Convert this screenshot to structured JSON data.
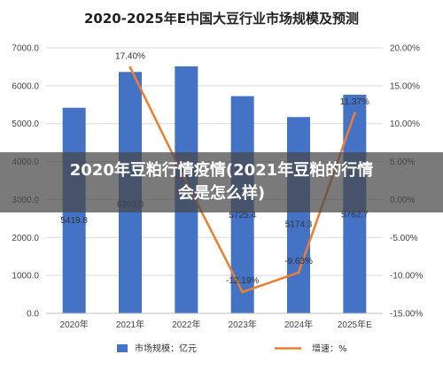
{
  "chart_data": {
    "type": "bar",
    "title": "2020-2025年E中国大豆行业市场规模及预测",
    "categories": [
      "2020年",
      "2021年",
      "2022年",
      "2023年",
      "2024年",
      "2025年E"
    ],
    "series": [
      {
        "name": "市场规模：亿元",
        "type": "bar",
        "axis": "left",
        "color": "#4472c4",
        "values": [
          5419.8,
          6363.0,
          6510,
          5725.4,
          5174.3,
          5762.7
        ]
      },
      {
        "name": "增速：%",
        "type": "line",
        "axis": "right",
        "color": "#ed7d31",
        "values": [
          null,
          17.4,
          2.31,
          -12.19,
          -9.63,
          11.37
        ]
      }
    ],
    "bar_labels": [
      "5419.8",
      "6363.0",
      "",
      "5725.4",
      "5174.3",
      "5762.7"
    ],
    "line_labels": [
      "",
      "17.40%",
      "",
      "-12.19%",
      "-9.63%",
      "11.37%"
    ],
    "left_ticks": [
      "0.0",
      "1000.0",
      "2000.0",
      "3000.0",
      "4000.0",
      "5000.0",
      "6000.0",
      "7000.0"
    ],
    "left_ylim": [
      0,
      7000
    ],
    "right_ticks": [
      "-15.00%",
      "-10.00%",
      "-5.00%",
      "0.00%",
      "5.00%",
      "10.00%",
      "15.00%",
      "20.00%"
    ],
    "right_ylim": [
      -15,
      20
    ],
    "grid": true,
    "legend_position": "bottom"
  },
  "overlay": {
    "headline": "2020年豆粕行情疫情(2021年豆粕的行情会是怎么样)"
  },
  "colors": {
    "bar": "#4472c4",
    "line": "#ed7d31"
  }
}
